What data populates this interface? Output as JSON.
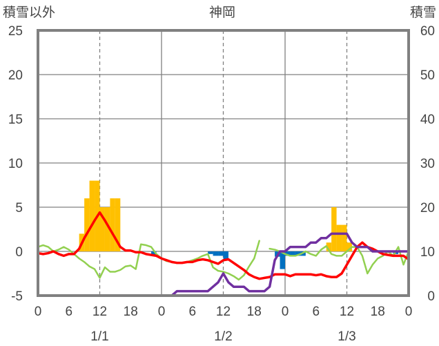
{
  "chart_data": {
    "type": "bar+line",
    "title": "神岡",
    "ylabel_left": "積雪以外",
    "ylabel_right": "積雪",
    "ylim_left": [
      -5,
      25
    ],
    "ylim_right": [
      0,
      60
    ],
    "yticks_left": [
      "-5",
      "0",
      "5",
      "10",
      "15",
      "20",
      "25"
    ],
    "yticks_right": [
      "0",
      "10",
      "20",
      "30",
      "40",
      "50",
      "60"
    ],
    "x_hours_range": [
      0,
      72
    ],
    "xtick_labels": [
      "0",
      "6",
      "12",
      "18",
      "0",
      "6",
      "12",
      "18",
      "0",
      "6",
      "12",
      "18",
      "0"
    ],
    "date_labels": [
      {
        "hour": 12,
        "label": "1/1"
      },
      {
        "hour": 36,
        "label": "1/2"
      },
      {
        "hour": 60,
        "label": "1/3"
      }
    ],
    "colors": {
      "snowfall": "#FFC000",
      "precip": "#0070C0",
      "temp": "#FF0000",
      "green": "#92D050",
      "depth": "#7030A0",
      "frame": "#808080",
      "grid": "#808080"
    },
    "snowfall_bars": [
      {
        "hour": 9,
        "value": 2
      },
      {
        "hour": 10,
        "value": 6
      },
      {
        "hour": 11,
        "value": 8
      },
      {
        "hour": 12,
        "value": 8
      },
      {
        "hour": 13,
        "value": 5
      },
      {
        "hour": 14,
        "value": 5
      },
      {
        "hour": 15,
        "value": 6
      },
      {
        "hour": 16,
        "value": 6
      },
      {
        "hour": 57,
        "value": 1
      },
      {
        "hour": 58,
        "value": 5
      },
      {
        "hour": 59,
        "value": 3
      },
      {
        "hour": 60,
        "value": 3
      },
      {
        "hour": 61,
        "value": 1
      }
    ],
    "precip_bars": [
      {
        "hour": 23,
        "value": -0.5
      },
      {
        "hour": 34,
        "value": -0.3
      },
      {
        "hour": 35,
        "value": -0.5
      },
      {
        "hour": 36,
        "value": -0.5
      },
      {
        "hour": 37,
        "value": -1.0
      },
      {
        "hour": 47,
        "value": -0.6
      },
      {
        "hour": 48,
        "value": -2.0
      },
      {
        "hour": 49,
        "value": -0.5
      },
      {
        "hour": 50,
        "value": -0.5
      },
      {
        "hour": 51,
        "value": -0.5
      },
      {
        "hour": 52,
        "value": -0.5
      },
      {
        "hour": 70,
        "value": -0.3
      }
    ],
    "series": [
      {
        "key": "temp",
        "axis": "left",
        "x": [
          0,
          1,
          2,
          3,
          4,
          5,
          6,
          7,
          8,
          9,
          10,
          11,
          12,
          13,
          14,
          15,
          16,
          17,
          18,
          19,
          20,
          21,
          22,
          23,
          24,
          25,
          26,
          27,
          28,
          29,
          30,
          31,
          32,
          33,
          34,
          35,
          36,
          37,
          38,
          39,
          40,
          41,
          42,
          43,
          44,
          45,
          46,
          47,
          48,
          49,
          50,
          51,
          52,
          53,
          54,
          55,
          56,
          57,
          58,
          59,
          60,
          61,
          62,
          63,
          64,
          65,
          66,
          67,
          68,
          69,
          70,
          71,
          72
        ],
        "y": [
          -0.2,
          -0.3,
          -0.2,
          0.0,
          -0.3,
          -0.5,
          -0.3,
          -0.3,
          0.3,
          1.5,
          2.5,
          3.5,
          4.4,
          3.5,
          2.5,
          1.5,
          0.5,
          0.1,
          0.1,
          -0.1,
          -0.1,
          -0.3,
          -0.4,
          -0.5,
          -0.8,
          -1.0,
          -1.2,
          -1.3,
          -1.3,
          -1.2,
          -1.2,
          -1.0,
          -0.9,
          -1.0,
          -1.2,
          -1.4,
          -1.0,
          -0.9,
          -1.3,
          -1.7,
          -2.1,
          -2.6,
          -2.9,
          -3.1,
          -3.0,
          -2.9,
          -2.6,
          -2.6,
          -2.6,
          -2.8,
          -2.6,
          -2.6,
          -2.6,
          -2.6,
          -2.7,
          -2.6,
          -2.8,
          -2.9,
          -2.9,
          -2.5,
          -1.5,
          -0.5,
          0.5,
          1.0,
          0.5,
          0.3,
          0.0,
          -0.3,
          -0.4,
          -0.5,
          -0.5,
          -0.5,
          -0.9
        ]
      },
      {
        "key": "green",
        "axis": "left",
        "x": [
          0,
          1,
          2,
          3,
          4,
          5,
          6,
          7,
          8,
          9,
          10,
          11,
          12,
          13,
          14,
          15,
          16,
          17,
          18,
          19,
          20,
          21,
          22,
          23,
          24,
          25,
          26,
          27,
          28,
          29,
          30,
          31,
          32,
          33,
          34,
          35,
          36,
          37,
          38,
          39,
          40,
          41,
          42,
          43,
          44,
          45,
          46,
          47,
          48,
          49,
          50,
          51,
          52,
          53,
          54,
          55,
          56,
          57,
          58,
          59,
          60,
          61,
          62,
          63,
          64,
          65,
          66,
          67,
          68,
          69,
          70,
          71,
          72
        ],
        "y": [
          0.5,
          0.7,
          0.5,
          0.0,
          0.2,
          0.5,
          0.2,
          -0.3,
          -0.8,
          -1.2,
          -1.7,
          -2.0,
          -3.0,
          -1.8,
          -2.3,
          -2.3,
          -2.1,
          -1.7,
          -1.6,
          -2.0,
          0.8,
          0.7,
          0.5,
          -0.3,
          -0.8,
          -1.1,
          -1.2,
          -1.3,
          -1.3,
          -1.2,
          -1.0,
          -0.8,
          -0.5,
          -0.3,
          -1.8,
          -2.2,
          -2.3,
          -2.5,
          -2.8,
          -3.2,
          -2.7,
          -1.7,
          -0.8,
          1.2,
          null,
          0.3,
          0.2,
          0.0,
          -0.3,
          -0.5,
          -0.5,
          -0.3,
          0.0,
          -0.3,
          -0.5,
          0.2,
          0.6,
          -0.3,
          -0.5,
          -0.5,
          0.0,
          0.5,
          0.5,
          -0.5,
          -2.5,
          -1.5,
          -0.8,
          -0.5,
          0.0,
          -0.5,
          0.5,
          -1.5,
          0.0
        ]
      },
      {
        "key": "depth",
        "axis": "right",
        "x": [
          0,
          1,
          2,
          3,
          4,
          5,
          6,
          7,
          8,
          9,
          10,
          11,
          12,
          13,
          14,
          15,
          16,
          17,
          18,
          19,
          20,
          21,
          22,
          23,
          24,
          25,
          26,
          27,
          28,
          29,
          30,
          31,
          32,
          33,
          34,
          35,
          36,
          37,
          38,
          39,
          40,
          41,
          42,
          43,
          44,
          45,
          46,
          47,
          48,
          49,
          50,
          51,
          52,
          53,
          54,
          55,
          56,
          57,
          58,
          59,
          60,
          61,
          62,
          63,
          64,
          65,
          66,
          67,
          68,
          69,
          70,
          71,
          72
        ],
        "y": [
          0,
          0,
          0,
          0,
          0,
          0,
          0,
          0,
          0,
          0,
          0,
          0,
          0,
          0,
          0,
          0,
          0,
          0,
          0,
          0,
          0,
          0,
          0,
          0,
          0,
          0,
          0,
          1,
          1,
          1,
          1,
          1,
          1,
          1,
          2,
          3,
          5,
          3,
          2,
          2,
          2,
          1,
          1,
          1,
          1,
          2,
          8,
          10,
          10,
          11,
          11,
          11,
          11,
          12,
          12,
          13,
          13,
          14,
          14,
          14,
          14,
          12,
          11,
          11,
          11,
          10,
          10,
          10,
          10,
          10,
          10,
          10,
          10
        ]
      }
    ]
  }
}
